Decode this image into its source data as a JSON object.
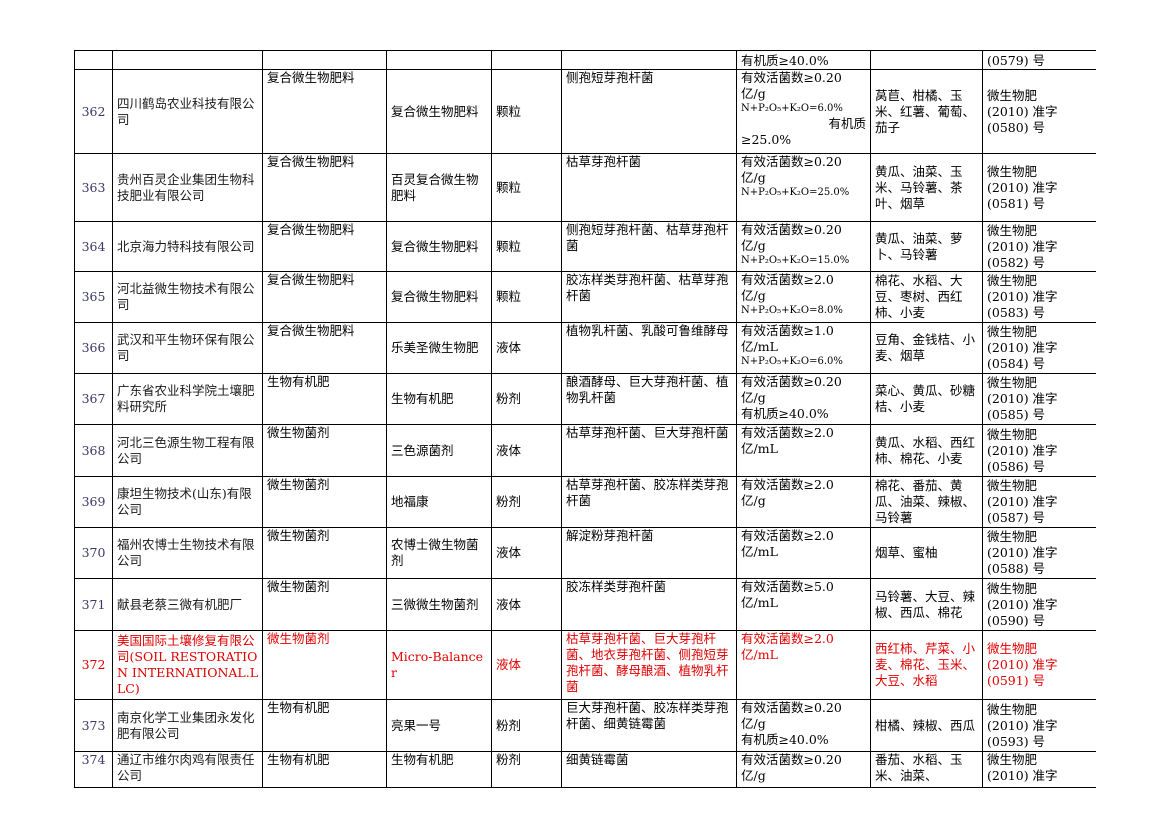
{
  "rows": [
    {
      "no": "",
      "company": "",
      "category": "",
      "product": "",
      "form": "",
      "strains": "",
      "spec_lines": [
        {
          "t": "有机质≥40.0%",
          "small": false
        }
      ],
      "crops": "",
      "reg_lines": [
        "(0579) 号"
      ],
      "partial": "top",
      "red": false
    },
    {
      "no": "362",
      "company": "四川鹤岛农业科技有限公司",
      "category": "复合微生物肥料",
      "product": "复合微生物肥料",
      "form": "颗粒",
      "strains": "侧孢短芽孢杆菌",
      "spec_lines": [
        {
          "t": "有效活菌数≥0.20",
          "small": false
        },
        {
          "t": "亿/g",
          "small": false
        },
        {
          "t": "N+P₂O₅+K₂O=6.0%",
          "small": true
        },
        {
          "t": "有机质",
          "small": false,
          "right": true
        },
        {
          "t": "≥25.0%",
          "small": false
        }
      ],
      "crops": "莴苣、柑橘、玉米、红薯、葡萄、茄子",
      "reg_lines": [
        "微生物肥",
        "(2010) 准字",
        "(0580) 号"
      ],
      "red": false
    },
    {
      "no": "363",
      "company": "贵州百灵企业集团生物科技肥业有限公司",
      "category": "复合微生物肥料",
      "product": "百灵复合微生物肥料",
      "form": "颗粒",
      "strains": "枯草芽孢杆菌",
      "spec_lines": [
        {
          "t": "有效活菌数≥0.20",
          "small": false
        },
        {
          "t": "亿/g",
          "small": false
        },
        {
          "t": "N+P₂O₅+K₂O=25.0%",
          "small": true
        }
      ],
      "crops": "黄瓜、油菜、玉米、马铃薯、茶叶、烟草",
      "reg_lines": [
        "微生物肥",
        "(2010) 准字",
        "(0581) 号"
      ],
      "red": false
    },
    {
      "no": "364",
      "company": "北京海力特科技有限公司",
      "category": "复合微生物肥料",
      "product": "复合微生物肥料",
      "form": "颗粒",
      "strains": "侧孢短芽孢杆菌、枯草芽孢杆菌",
      "spec_lines": [
        {
          "t": "有效活菌数≥0.20",
          "small": false
        },
        {
          "t": "亿/g",
          "small": false
        },
        {
          "t": "N+P₂O₅+K₂O=15.0%",
          "small": true
        }
      ],
      "crops": "黄瓜、油菜、萝卜、马铃薯",
      "reg_lines": [
        "微生物肥",
        "(2010) 准字",
        "(0582) 号"
      ],
      "red": false
    },
    {
      "no": "365",
      "company": "河北益微生物技术有限公司",
      "category": "复合微生物肥料",
      "product": "复合微生物肥料",
      "form": "颗粒",
      "strains": "胶冻样类芽孢杆菌、枯草芽孢杆菌",
      "spec_lines": [
        {
          "t": "有效活菌数≥2.0",
          "small": false
        },
        {
          "t": "亿/g",
          "small": false
        },
        {
          "t": "N+P₂O₅+K₂O=8.0%",
          "small": true
        }
      ],
      "crops": "棉花、水稻、大豆、枣树、西红柿、小麦",
      "reg_lines": [
        "微生物肥",
        "(2010) 准字",
        "(0583) 号"
      ],
      "red": false
    },
    {
      "no": "366",
      "company": "武汉和平生物环保有限公司",
      "category": "复合微生物肥料",
      "product": "乐美圣微生物肥",
      "form": "液体",
      "strains": "植物乳杆菌、乳酸可鲁维酵母",
      "spec_lines": [
        {
          "t": "有效活菌数≥1.0",
          "small": false
        },
        {
          "t": "亿/mL",
          "small": false
        },
        {
          "t": "N+P₂O₅+K₂O=6.0%",
          "small": true
        }
      ],
      "crops": "豆角、金钱桔、小麦、烟草",
      "reg_lines": [
        "微生物肥",
        "(2010) 准字",
        "(0584) 号"
      ],
      "red": false
    },
    {
      "no": "367",
      "company": "广东省农业科学院土壤肥料研究所",
      "category": "生物有机肥",
      "product": "生物有机肥",
      "form": "粉剂",
      "strains": "酿酒酵母、巨大芽孢杆菌、植物乳杆菌",
      "spec_lines": [
        {
          "t": "有效活菌数≥0.20",
          "small": false
        },
        {
          "t": "亿/g",
          "small": false
        },
        {
          "t": "有机质≥40.0%",
          "small": false
        }
      ],
      "crops": "菜心、黄瓜、砂糖桔、小麦",
      "reg_lines": [
        "微生物肥",
        "(2010) 准字",
        "(0585) 号"
      ],
      "red": false
    },
    {
      "no": "368",
      "company": "河北三色源生物工程有限公司",
      "category": "微生物菌剂",
      "product": "三色源菌剂",
      "form": "液体",
      "strains": "枯草芽孢杆菌、巨大芽孢杆菌",
      "spec_lines": [
        {
          "t": "有效活菌数≥2.0",
          "small": false
        },
        {
          "t": "亿/mL",
          "small": false
        }
      ],
      "crops": "黄瓜、水稻、西红柿、棉花、小麦",
      "reg_lines": [
        "微生物肥",
        "(2010) 准字",
        "(0586) 号"
      ],
      "red": false
    },
    {
      "no": "369",
      "company": "康坦生物技术(山东)有限公司",
      "category": "微生物菌剂",
      "product": "地福康",
      "form": "粉剂",
      "strains": "枯草芽孢杆菌、胶冻样类芽孢杆菌",
      "spec_lines": [
        {
          "t": "有效活菌数≥2.0",
          "small": false
        },
        {
          "t": "亿/g",
          "small": false
        }
      ],
      "crops": "棉花、番茄、黄瓜、油菜、辣椒、马铃薯",
      "reg_lines": [
        "微生物肥",
        "(2010) 准字",
        "(0587) 号"
      ],
      "red": false
    },
    {
      "no": "370",
      "company": "福州农博士生物技术有限公司",
      "category": "微生物菌剂",
      "product": "农博士微生物菌剂",
      "form": "液体",
      "strains": "解淀粉芽孢杆菌",
      "spec_lines": [
        {
          "t": "有效活菌数≥2.0",
          "small": false
        },
        {
          "t": "亿/mL",
          "small": false
        }
      ],
      "crops": "烟草、蜜柚",
      "reg_lines": [
        "微生物肥",
        "(2010) 准字",
        "(0588) 号"
      ],
      "red": false
    },
    {
      "no": "371",
      "company": "献县老蔡三微有机肥厂",
      "category": "微生物菌剂",
      "product": "三微微生物菌剂",
      "form": "液体",
      "strains": "胶冻样类芽孢杆菌",
      "spec_lines": [
        {
          "t": "有效活菌数≥5.0",
          "small": false
        },
        {
          "t": "亿/mL",
          "small": false
        }
      ],
      "crops": "马铃薯、大豆、辣椒、西瓜、棉花",
      "reg_lines": [
        "微生物肥",
        "(2010) 准字",
        "(0590) 号"
      ],
      "red": false
    },
    {
      "no": "372",
      "company": "美国国际土壤修复有限公司(SOIL RESTORATION INTERNATIONAL.LLC)",
      "category": "微生物菌剂",
      "product": "Micro-Balancer",
      "form": "液体",
      "strains": "枯草芽孢杆菌、巨大芽孢杆菌、地衣芽孢杆菌、侧孢短芽孢杆菌、酵母酿酒、植物乳杆菌",
      "spec_lines": [
        {
          "t": "有效活菌数≥2.0",
          "small": false
        },
        {
          "t": "亿/mL",
          "small": false
        }
      ],
      "crops": "西红柿、芹菜、小麦、棉花、玉米、大豆、水稻",
      "reg_lines": [
        "微生物肥",
        "(2010) 准字",
        "(0591) 号"
      ],
      "red": true
    },
    {
      "no": "373",
      "company": "南京化学工业集团永发化肥有限公司",
      "category": "生物有机肥",
      "product": "亮果一号",
      "form": "粉剂",
      "strains": "巨大芽孢杆菌、胶冻样类芽孢杆菌、细黄链霉菌",
      "spec_lines": [
        {
          "t": "有效活菌数≥0.20",
          "small": false
        },
        {
          "t": "亿/g",
          "small": false
        },
        {
          "t": "有机质≥40.0%",
          "small": false
        }
      ],
      "crops": "柑橘、辣椒、西瓜",
      "reg_lines": [
        "微生物肥",
        "(2010) 准字",
        "(0593) 号"
      ],
      "red": false
    },
    {
      "no": "374",
      "company": "通辽市维尔肉鸡有限责任公司",
      "category": "生物有机肥",
      "product": "生物有机肥",
      "form": "粉剂",
      "strains": "细黄链霉菌",
      "spec_lines": [
        {
          "t": "有效活菌数≥0.20",
          "small": false
        },
        {
          "t": "亿/g",
          "small": false
        }
      ],
      "crops": "番茄、水稻、玉米、油菜、",
      "reg_lines": [
        "微生物肥",
        "(2010) 准字"
      ],
      "partial": "bottom",
      "red": false
    }
  ]
}
